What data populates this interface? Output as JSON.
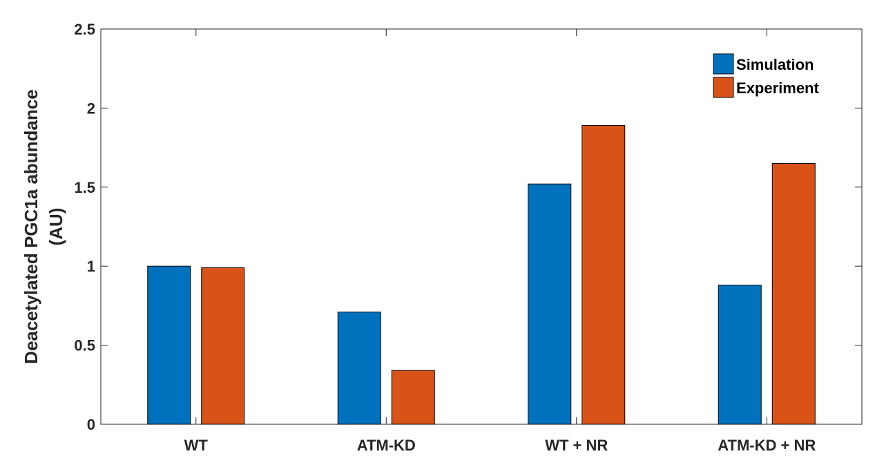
{
  "chart_data": {
    "type": "bar",
    "categories": [
      "WT",
      "ATM-KD",
      "WT + NR",
      "ATM-KD + NR"
    ],
    "series": [
      {
        "name": "Simulation",
        "values": [
          1.0,
          0.71,
          1.52,
          0.88
        ],
        "color": "#0072BD"
      },
      {
        "name": "Experiment",
        "values": [
          0.99,
          0.34,
          1.89,
          1.65
        ],
        "color": "#D95319"
      }
    ],
    "ylabel_lines": [
      "Deacetylated PGC1a abundance",
      "(AU)"
    ],
    "ylim": [
      0,
      2.5
    ],
    "yticks": [
      0,
      0.5,
      1,
      1.5,
      2,
      2.5
    ],
    "ytick_labels": [
      "0",
      "0.5",
      "1",
      "1.5",
      "2",
      "2.5"
    ],
    "grid": false,
    "legend_position": "top-right"
  }
}
